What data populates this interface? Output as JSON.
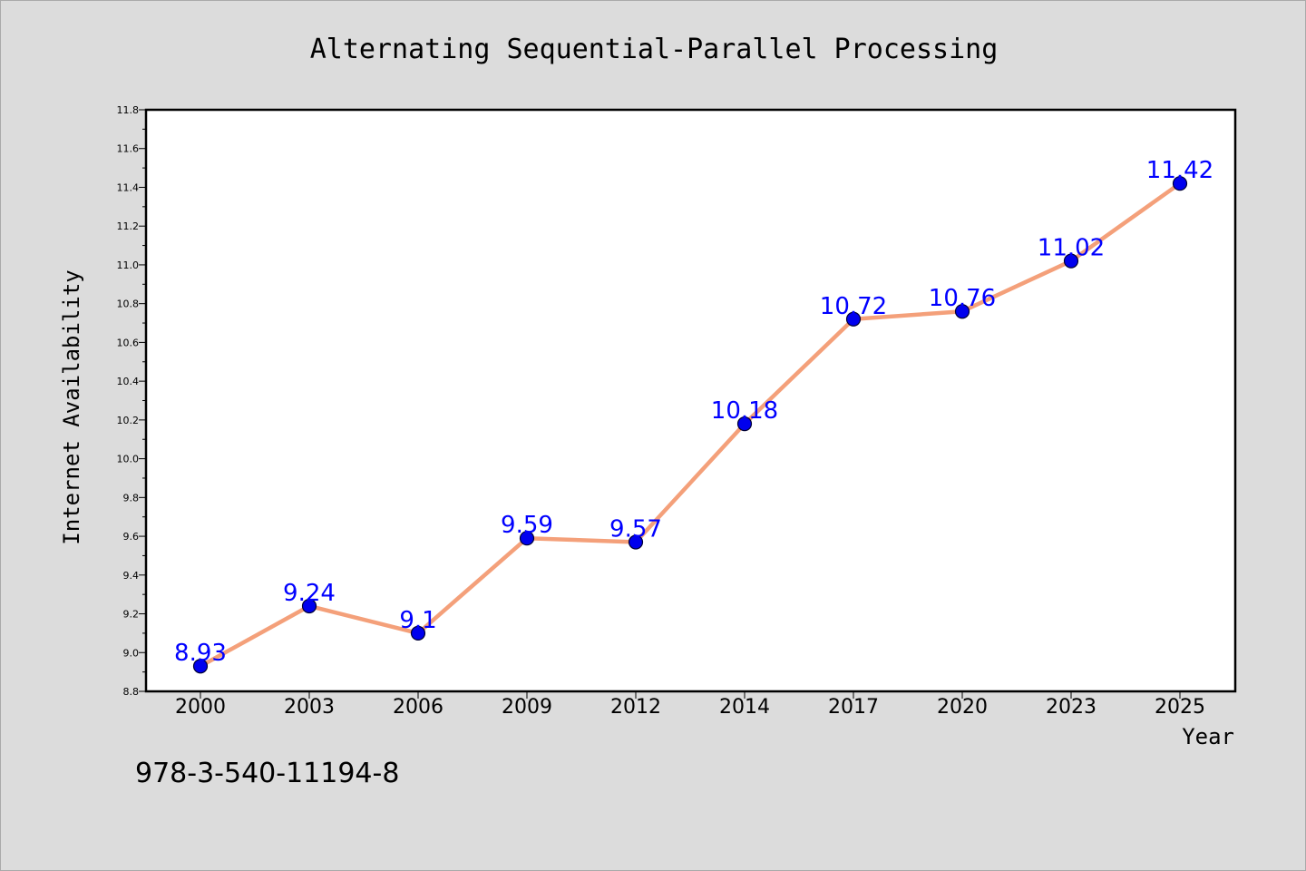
{
  "chart_data": {
    "type": "line",
    "title": "Alternating Sequential-Parallel Processing",
    "xlabel": "Year",
    "ylabel": "Internet Availability",
    "categories": [
      "2000",
      "2003",
      "2006",
      "2009",
      "2012",
      "2014",
      "2017",
      "2020",
      "2023",
      "2025"
    ],
    "series": [
      {
        "values": [
          8.93,
          9.24,
          9.1,
          9.59,
          9.57,
          10.18,
          10.72,
          10.76,
          11.02,
          11.42
        ],
        "labels": [
          "8.93",
          "9.24",
          "9.1",
          "9.59",
          "9.57",
          "10.18",
          "10.72",
          "10.76",
          "11.02",
          "11.42"
        ]
      }
    ],
    "ylim": [
      8.8,
      11.8
    ],
    "yticks": [
      "8.8",
      "9.0",
      "9.2",
      "9.4",
      "9.6",
      "9.8",
      "10.0",
      "10.2",
      "10.4",
      "10.6",
      "10.8",
      "11.0",
      "11.2",
      "11.4",
      "11.6",
      "11.8"
    ],
    "grid": false,
    "colors": {
      "line": "#f4a07a",
      "marker_fill": "#0000ee",
      "marker_edge": "#000033",
      "data_label": "#0000ff",
      "plot_background": "#ffffff",
      "page_background": "#dcdcdc"
    }
  },
  "footnote": "978-3-540-11194-8"
}
